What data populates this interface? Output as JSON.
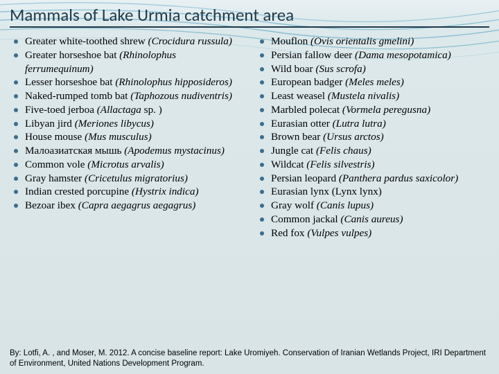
{
  "title": "Mammals of Lake Urmia catchment area",
  "bullet_color": "#3a6d8f",
  "title_color": "#1f3a4a",
  "left": [
    {
      "c": "Greater white-toothed shrew",
      "s": "(Crocidura russula)"
    },
    {
      "c": "Greater horseshoe bat",
      "s": "(Rhinolophus ferrumequinum)"
    },
    {
      "c": "Lesser horseshoe bat",
      "s": "(Rhinolophus hipposideros)"
    },
    {
      "c": "Naked-rumped tomb bat",
      "s": "(Taphozous nudiventris)"
    },
    {
      "c": "Five-toed jerboa",
      "s": "(Allactaga",
      "t": " sp. )"
    },
    {
      "c": "Libyan jird",
      "s": "(Meriones libycus)"
    },
    {
      "c": "House mouse",
      "s": "(Mus musculus)"
    },
    {
      "c": "Малоазиатская мышь",
      "s": "(Apodemus mystacinus)"
    },
    {
      "c": "Common vole",
      "s": "(Microtus arvalis)"
    },
    {
      "c": "Gray hamster",
      "s": "(Cricetulus migratorius)"
    },
    {
      "c": "Indian crested porcupine",
      "s": "(Hystrix indica)"
    },
    {
      "c": "Bezoar ibex",
      "s": "(Capra aegagrus aegagrus)"
    }
  ],
  "right": [
    {
      "c": "Mouflon",
      "s": "(Ovis orientalis gmelini)"
    },
    {
      "c": "Persian fallow deer",
      "s": "(Dama mesopotamica)"
    },
    {
      "c": "Wild boar",
      "s": "(Sus scrofa)"
    },
    {
      "c": "European badger",
      "s": "(Meles meles)"
    },
    {
      "c": "Least weasel",
      "s": "(Mustela nivalis)"
    },
    {
      "c": "Marbled polecat",
      "s": "(Vormela peregusna)"
    },
    {
      "c": "Eurasian otter",
      "s": "(Lutra lutra)"
    },
    {
      "c": "Brown bear",
      "s": "(Ursus arctos)"
    },
    {
      "c": "Jungle cat",
      "s": "(Felis chaus)"
    },
    {
      "c": "Wildcat",
      "s": "(Felis silvestris)"
    },
    {
      "c": "Persian leopard",
      "s": "(Panthera pardus saxicolor)"
    },
    {
      "c": "Eurasian lynx (Lynx lynx)",
      "s": ""
    },
    {
      "c": "Gray wolf",
      "s": "(Canis lupus)"
    },
    {
      "c": "Common jackal",
      "s": "(Canis aureus)"
    },
    {
      "c": "Red fox",
      "s": "(Vulpes vulpes)"
    }
  ],
  "citation": "By: Lotfi, A. , and Moser, M. 2012. A concise baseline report: Lake Uromiyeh. Conservation of Iranian Wetlands Project, IRI Department of Environment, United Nations Development Program."
}
